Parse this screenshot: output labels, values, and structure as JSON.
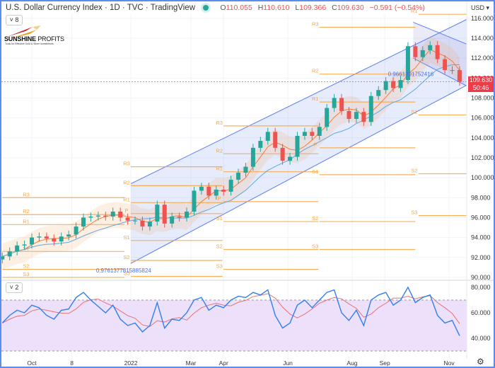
{
  "header": {
    "title": "U.S. Dollar Currency Index · 1D · TVC · TradingView",
    "open_label": "O",
    "open": "110.055",
    "high_label": "H",
    "high": "110.610",
    "low_label": "L",
    "low": "109.366",
    "close_label": "C",
    "close": "109.630",
    "change": "−0.591 (−0.54%)",
    "main_indicators_count": "8",
    "rsi_indicators_count": "2"
  },
  "logo": {
    "name_bold": "SUNSHINE",
    "name_rest": " PROFITS",
    "tagline": "Tools for Effective Gold & Silver Investments"
  },
  "price_axis": {
    "currency": "USD ▾",
    "last_price": "109.630",
    "countdown": "50:46"
  },
  "colors": {
    "up": "#26a69a",
    "down": "#ef5350",
    "pivot": "#f7a440",
    "channel": "#5b7cf0",
    "ma_fast": "#f57c3a",
    "ma_slow": "#5fa8e0",
    "rsi": "#2f7ff0",
    "rsi_ma": "#e57373",
    "rsi_band": "#ede0fb",
    "frame": "#5b8def"
  },
  "chart_data": [
    {
      "type": "candlestick",
      "title": "U.S. Dollar Currency Index",
      "ylim": [
        89,
        117.5
      ],
      "y_ticks": [
        "90.000",
        "92.000",
        "94.000",
        "96.000",
        "98.000",
        "100.000",
        "102.000",
        "104.000",
        "106.000",
        "108.000",
        "110.000",
        "112.000",
        "114.000",
        "116.000"
      ],
      "x_ticks": [
        {
          "label": "Oct",
          "date": "2021-10-01"
        },
        {
          "label": "8",
          "date": "2021-11-08"
        },
        {
          "label": "2022",
          "date": "2022-01-03"
        },
        {
          "label": "Mar",
          "date": "2022-03-01"
        },
        {
          "label": "Apr",
          "date": "2022-04-01"
        },
        {
          "label": "Jun",
          "date": "2022-06-01"
        },
        {
          "label": "Aug",
          "date": "2022-08-01"
        },
        {
          "label": "Sep",
          "date": "2022-09-01"
        },
        {
          "label": "Nov",
          "date": "2022-11-01"
        }
      ],
      "dates": [
        "2021-09-03",
        "2021-09-10",
        "2021-09-17",
        "2021-09-24",
        "2021-10-01",
        "2021-10-08",
        "2021-10-15",
        "2021-10-22",
        "2021-10-29",
        "2021-11-05",
        "2021-11-12",
        "2021-11-19",
        "2021-11-26",
        "2021-12-03",
        "2021-12-10",
        "2021-12-17",
        "2021-12-24",
        "2021-12-31",
        "2022-01-07",
        "2022-01-14",
        "2022-01-21",
        "2022-01-28",
        "2022-02-04",
        "2022-02-11",
        "2022-02-18",
        "2022-02-25",
        "2022-03-04",
        "2022-03-11",
        "2022-03-18",
        "2022-03-25",
        "2022-04-01",
        "2022-04-08",
        "2022-04-15",
        "2022-04-22",
        "2022-04-29",
        "2022-05-06",
        "2022-05-13",
        "2022-05-20",
        "2022-05-27",
        "2022-06-03",
        "2022-06-10",
        "2022-06-17",
        "2022-06-24",
        "2022-07-01",
        "2022-07-08",
        "2022-07-15",
        "2022-07-22",
        "2022-07-29",
        "2022-08-05",
        "2022-08-12",
        "2022-08-19",
        "2022-08-26",
        "2022-09-02",
        "2022-09-09",
        "2022-09-16",
        "2022-09-23",
        "2022-09-30",
        "2022-10-07",
        "2022-10-14",
        "2022-10-21",
        "2022-10-28",
        "2022-11-04",
        "2022-11-11"
      ],
      "close": [
        92.1,
        92.6,
        93.2,
        93.3,
        94.0,
        94.1,
        93.9,
        93.6,
        94.1,
        94.3,
        95.1,
        96.0,
        96.1,
        96.2,
        96.1,
        96.6,
        96.0,
        95.7,
        95.7,
        95.1,
        95.6,
        97.3,
        95.4,
        96.1,
        96.0,
        96.6,
        98.7,
        99.1,
        98.2,
        98.8,
        98.6,
        99.8,
        100.5,
        101.1,
        103.0,
        103.7,
        104.6,
        103.0,
        101.7,
        102.1,
        104.2,
        104.6,
        104.2,
        105.1,
        107.0,
        108.0,
        106.7,
        105.9,
        106.6,
        105.6,
        108.2,
        108.8,
        109.7,
        109.0,
        109.8,
        113.2,
        112.1,
        112.8,
        113.3,
        111.9,
        110.8,
        110.8,
        109.63
      ],
      "pivots": [
        {
          "start": "2021-09-03",
          "end": "2021-12-28",
          "levels": {
            "R3": 98.0,
            "R2": 96.3,
            "R1": 95.3,
            "S1": 92.6,
            "S2": 90.8,
            "S3": 90.0
          }
        },
        {
          "start": "2022-01-03",
          "end": "2022-03-31",
          "levels": {
            "R3": 101.1,
            "R2": 99.2,
            "R1": 97.5,
            "P": 96.4,
            "S1": 93.7,
            "S2": 91.7,
            "S3": 90.1
          }
        },
        {
          "start": "2022-04-01",
          "end": "2022-06-30",
          "levels": {
            "R3": 105.2,
            "R2": 102.4,
            "R1": 100.6,
            "P": 97.6,
            "S1": 95.6,
            "S2": 92.8,
            "S3": 90.8
          }
        },
        {
          "start": "2022-07-01",
          "end": "2022-09-30",
          "levels": {
            "R3": 115.1,
            "R2": 110.4,
            "R1": 107.6,
            "P": 103.0,
            "S1": 100.3,
            "S2": 95.6,
            "S3": 92.8
          }
        },
        {
          "start": "2022-10-03",
          "end": "2022-11-18",
          "levels": {
            "R1": 116.4,
            "S1": 106.3,
            "S2": 100.4,
            "S3": 96.2
          }
        }
      ],
      "channels": [
        {
          "upper": [
            [
              "2022-01-03",
              99.4
            ],
            [
              "2022-11-18",
              115.9
            ]
          ],
          "lower": [
            [
              "2022-01-03",
              91.4
            ],
            [
              "2022-11-18",
              109.3
            ]
          ]
        },
        {
          "upper": [
            [
              "2022-09-28",
              115.6
            ],
            [
              "2022-11-18",
              113.4
            ]
          ],
          "lower": [
            [
              "2022-09-28",
              112.0
            ],
            [
              "2022-11-18",
              109.2
            ]
          ]
        }
      ],
      "annotations": [
        {
          "text": "0.9761377815885824",
          "date": "2021-12-01",
          "price": 90.5
        },
        {
          "text": "0.9661301752416",
          "date": "2022-09-04",
          "price": 110.2
        }
      ],
      "last_price": 109.63
    },
    {
      "type": "line",
      "title": "RSI",
      "ylim": [
        25,
        85
      ],
      "y_ticks": [
        "40.000",
        "60.000",
        "80.000"
      ],
      "band": [
        30,
        70
      ],
      "values": [
        52,
        58,
        62,
        60,
        66,
        64,
        58,
        55,
        62,
        63,
        72,
        76,
        70,
        65,
        60,
        66,
        55,
        50,
        52,
        45,
        50,
        68,
        48,
        55,
        54,
        60,
        70,
        72,
        62,
        66,
        64,
        70,
        73,
        72,
        76,
        74,
        78,
        58,
        48,
        52,
        66,
        70,
        64,
        70,
        76,
        78,
        60,
        54,
        62,
        50,
        70,
        74,
        76,
        66,
        70,
        80,
        68,
        72,
        74,
        58,
        52,
        54,
        42
      ]
    }
  ]
}
